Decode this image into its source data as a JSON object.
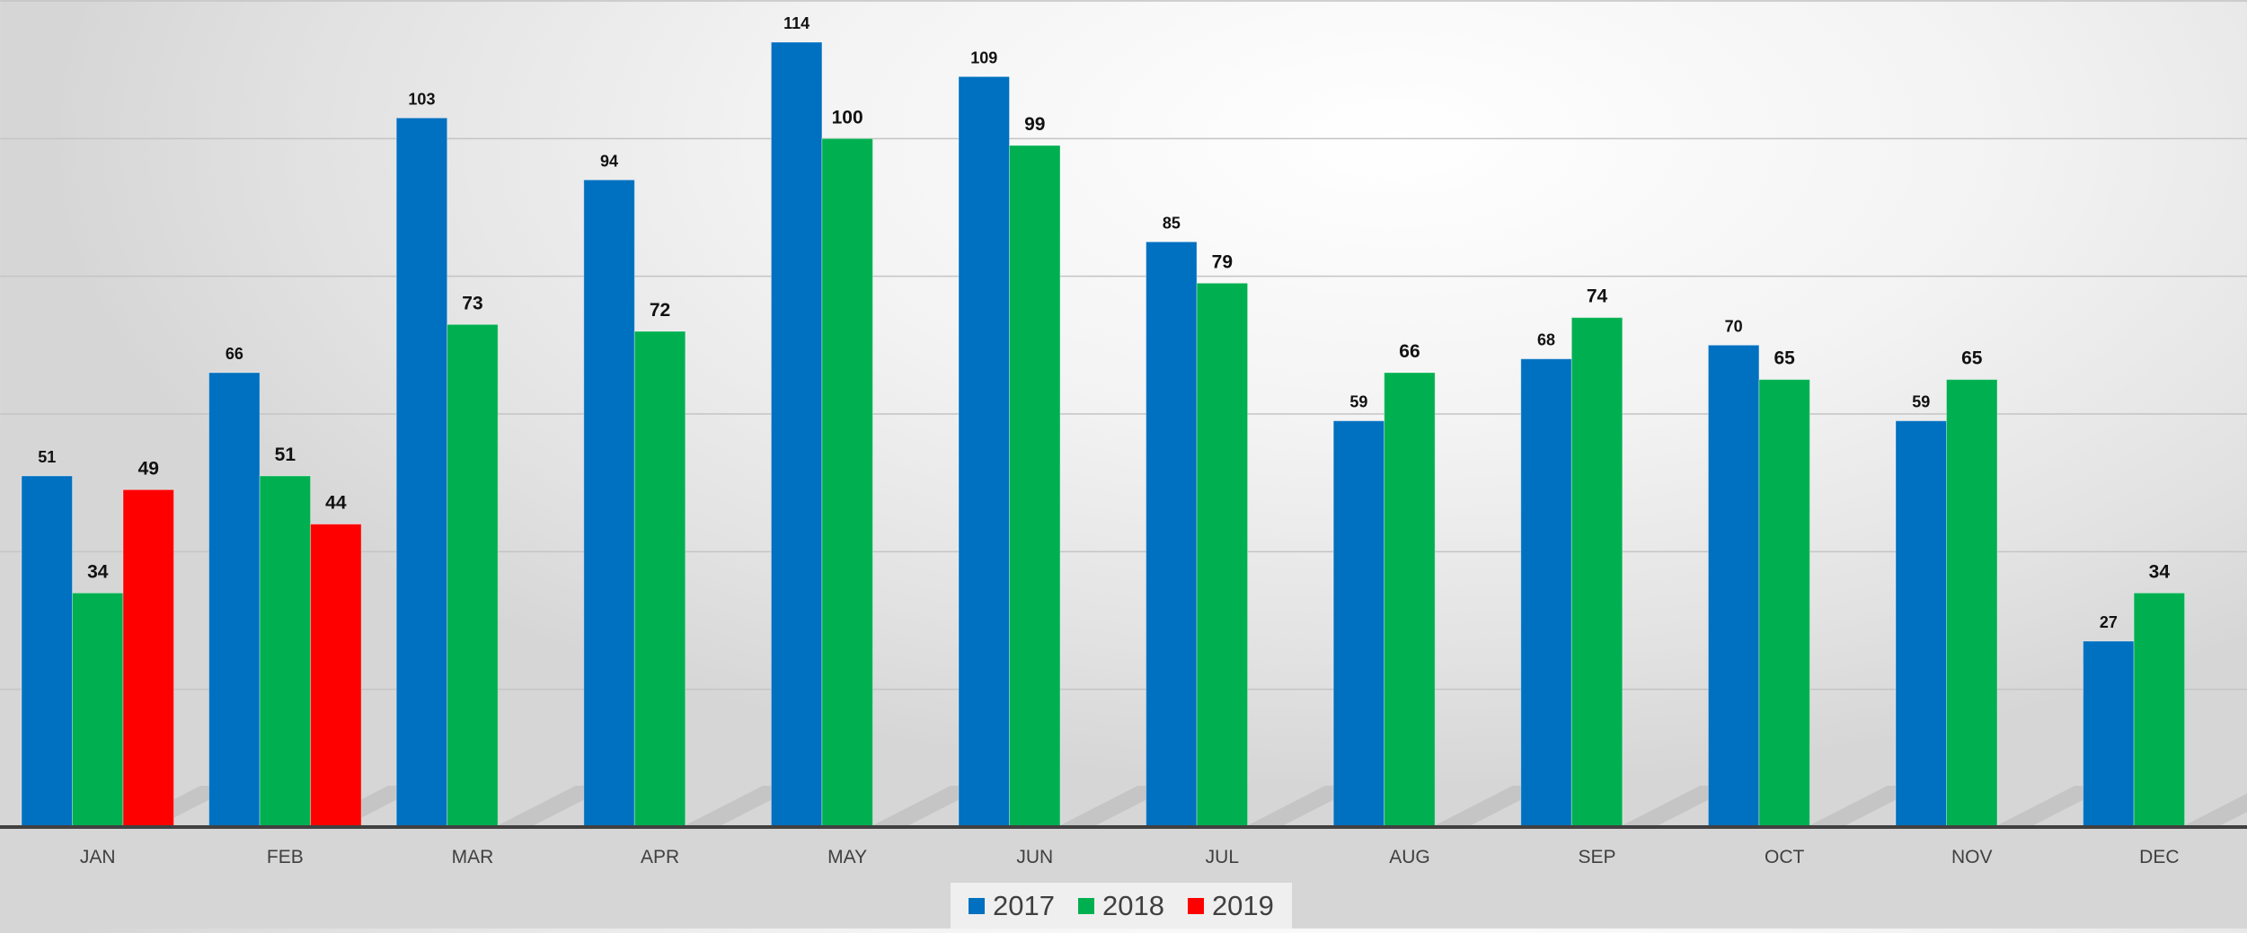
{
  "chart_data": {
    "type": "bar",
    "categories": [
      "JAN",
      "FEB",
      "MAR",
      "APR",
      "MAY",
      "JUN",
      "JUL",
      "AUG",
      "SEP",
      "OCT",
      "NOV",
      "DEC"
    ],
    "series": [
      {
        "name": "2017",
        "color": "#0070C0",
        "values": [
          51,
          66,
          103,
          94,
          114,
          109,
          85,
          59,
          68,
          70,
          59,
          27
        ]
      },
      {
        "name": "2018",
        "color": "#00B050",
        "values": [
          34,
          51,
          73,
          72,
          100,
          99,
          79,
          66,
          74,
          65,
          65,
          34
        ]
      },
      {
        "name": "2019",
        "color": "#FF0000",
        "values": [
          49,
          44,
          null,
          null,
          null,
          null,
          null,
          null,
          null,
          null,
          null,
          null
        ]
      }
    ],
    "ylim": [
      0,
      120
    ],
    "grid": true,
    "legend_position": "bottom",
    "data_labels": true
  }
}
